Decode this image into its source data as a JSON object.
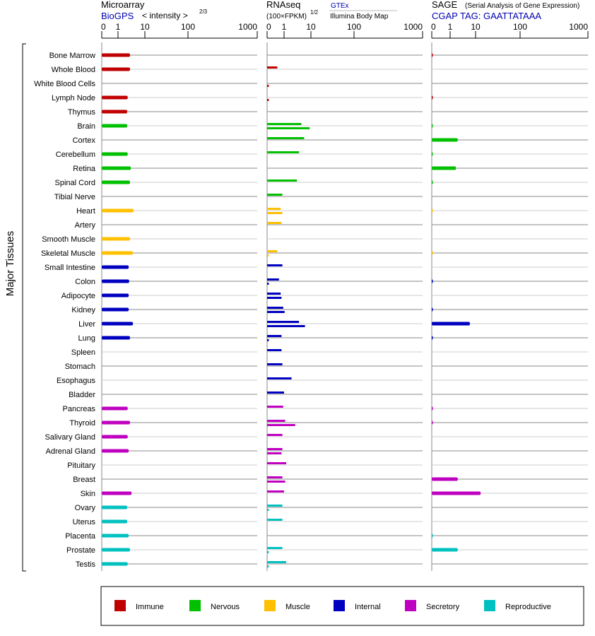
{
  "chart_data": {
    "type": "bar",
    "ylabel": "Major Tissues",
    "categories": [
      "Bone Marrow",
      "Whole Blood",
      "White Blood Cells",
      "Lymph Node",
      "Thymus",
      "Brain",
      "Cortex",
      "Cerebellum",
      "Retina",
      "Spinal Cord",
      "Tibial Nerve",
      "Heart",
      "Artery",
      "Smooth Muscle",
      "Skeletal Muscle",
      "Small Intestine",
      "Colon",
      "Adipocyte",
      "Kidney",
      "Liver",
      "Lung",
      "Spleen",
      "Stomach",
      "Esophagus",
      "Bladder",
      "Pancreas",
      "Thyroid",
      "Salivary Gland",
      "Adrenal Gland",
      "Pituitary",
      "Breast",
      "Skin",
      "Ovary",
      "Uterus",
      "Placenta",
      "Prostate",
      "Testis"
    ],
    "groups": [
      "Immune",
      "Immune",
      "Immune",
      "Immune",
      "Immune",
      "Nervous",
      "Nervous",
      "Nervous",
      "Nervous",
      "Nervous",
      "Nervous",
      "Muscle",
      "Muscle",
      "Muscle",
      "Muscle",
      "Internal",
      "Internal",
      "Internal",
      "Internal",
      "Internal",
      "Internal",
      "Internal",
      "Internal",
      "Internal",
      "Internal",
      "Secretory",
      "Secretory",
      "Secretory",
      "Secretory",
      "Secretory",
      "Secretory",
      "Secretory",
      "Reproductive",
      "Reproductive",
      "Reproductive",
      "Reproductive",
      "Reproductive"
    ],
    "panels": [
      {
        "title": "Microarray",
        "source": "BioGPS",
        "scale_label": "< intensity >",
        "scale_exp": "2/3",
        "ticks": [
          "0",
          "1",
          "10",
          "100",
          "1000"
        ],
        "series": [
          {
            "name": "BioGPS",
            "values": [
              2.8,
              2.8,
              null,
              2.3,
              2.2,
              2.2,
              null,
              2.3,
              3.0,
              2.8,
              null,
              3.8,
              null,
              2.8,
              3.6,
              2.5,
              2.6,
              2.5,
              2.5,
              3.6,
              2.8,
              null,
              null,
              null,
              null,
              2.3,
              2.8,
              2.3,
              2.5,
              null,
              null,
              3.2,
              2.2,
              2.2,
              2.5,
              2.8,
              2.3
            ]
          }
        ]
      },
      {
        "title": "RNAseq",
        "scale_label": "(100×FPKM)",
        "scale_exp": "1/2",
        "ticks": [
          "0",
          "1",
          "10",
          "100",
          "1000"
        ],
        "series": [
          {
            "name": "GTEx",
            "values": [
              null,
              0.6,
              null,
              null,
              null,
              4.4,
              5.6,
              3.6,
              null,
              3.0,
              0.9,
              0.8,
              0.85,
              null,
              0.6,
              0.9,
              0.7,
              0.8,
              0.95,
              3.6,
              0.85,
              0.85,
              0.9,
              1.9,
              1.0,
              0.95,
              1.1,
              0.9,
              0.9,
              1.2,
              0.9,
              1.0,
              0.9,
              0.9,
              null,
              0.9,
              1.2
            ]
          },
          {
            "name": "Illumina Body Map",
            "values": [
              null,
              null,
              0.1,
              0.1,
              null,
              9.0,
              null,
              null,
              null,
              null,
              null,
              0.9,
              null,
              null,
              0.1,
              null,
              0.1,
              0.85,
              1.05,
              6.0,
              0.1,
              null,
              null,
              null,
              null,
              null,
              2.6,
              null,
              0.85,
              null,
              1.1,
              null,
              0.1,
              null,
              null,
              0.1,
              0.1
            ]
          }
        ]
      },
      {
        "title": "SAGE",
        "subtitle": "(Serial Analysis of Gene Expression)",
        "source": "CGAP TAG: GAATTATAAA",
        "ticks": [
          "0",
          "1",
          "10",
          "100",
          "1000"
        ],
        "series": [
          {
            "name": "SAGE",
            "values": [
              0.05,
              null,
              null,
              0.05,
              null,
              0.05,
              2.0,
              0.05,
              1.7,
              0.05,
              null,
              0.05,
              null,
              null,
              0.05,
              null,
              0.05,
              null,
              0.05,
              6.0,
              0.05,
              null,
              null,
              null,
              null,
              0.05,
              0.05,
              null,
              null,
              null,
              2.0,
              13.0,
              null,
              null,
              0.05,
              2.0,
              null
            ]
          }
        ]
      }
    ],
    "legend": [
      {
        "name": "Immune",
        "color": "#c00000"
      },
      {
        "name": "Nervous",
        "color": "#00c000"
      },
      {
        "name": "Muscle",
        "color": "#ffc000"
      },
      {
        "name": "Internal",
        "color": "#0000c0"
      },
      {
        "name": "Secretory",
        "color": "#c000c0"
      },
      {
        "name": "Reproductive",
        "color": "#00c0c0"
      }
    ],
    "legend_position": "bottom"
  }
}
